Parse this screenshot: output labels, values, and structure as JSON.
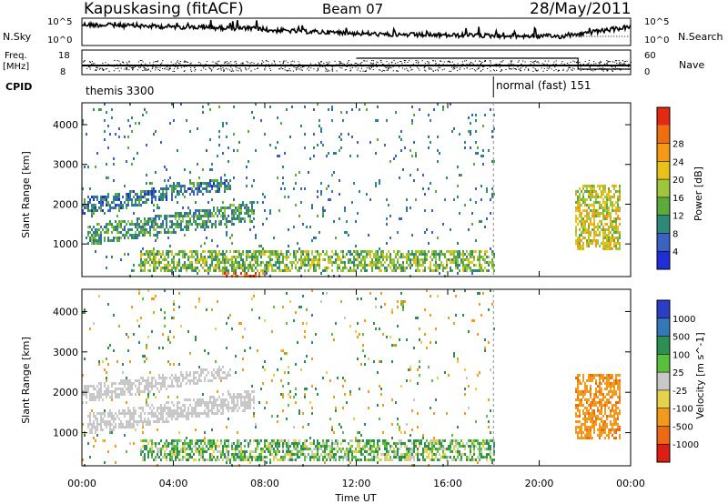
{
  "header": {
    "station": "Kapuskasing (fitACF)",
    "beam": "Beam 07",
    "date": "28/May/2011"
  },
  "sky_panel": {
    "left_label": "N.Sky",
    "right_label": "N.Search",
    "left_ticks": [
      "10^5",
      "10^0"
    ],
    "right_ticks": [
      "10^5",
      "10^0"
    ]
  },
  "freq_panel": {
    "left_label_1": "Freq.",
    "left_label_2": "[MHz]",
    "right_label": "Nave",
    "left_ticks": [
      "18",
      "8"
    ],
    "right_ticks": [
      "60",
      "0"
    ]
  },
  "cpid_panel": {
    "label": "CPID",
    "segments": [
      {
        "name": "themis 3300",
        "start_hour": 0
      },
      {
        "name": "normal (fast) 151",
        "start_hour": 18
      }
    ]
  },
  "time_axis": {
    "label": "Time UT",
    "ticks": [
      "00:00",
      "04:00",
      "08:00",
      "12:00",
      "16:00",
      "20:00",
      "00:00"
    ],
    "range_hours": [
      0,
      24
    ]
  },
  "range_axis": {
    "label": "Slant Range [km]",
    "ticks": [
      "1000",
      "2000",
      "3000",
      "4000"
    ],
    "range_km": [
      180,
      4550
    ]
  },
  "power_scale": {
    "label": "Power [dB]",
    "ticks": [
      "4",
      "8",
      "12",
      "16",
      "20",
      "24",
      "28"
    ],
    "range": [
      0,
      32
    ],
    "colors": [
      "#1f2fd8",
      "#3a62c0",
      "#2e8a78",
      "#5caa3c",
      "#9fc63a",
      "#e6c21a",
      "#f49a16",
      "#ef6e0e",
      "#e02a12"
    ]
  },
  "velocity_scale": {
    "label": "Velocity [m s^-1]",
    "ticks": [
      "1000",
      "500",
      "100",
      "25",
      "-25",
      "-100",
      "-500",
      "-1000"
    ],
    "colors": [
      "#2a3fc6",
      "#3578b8",
      "#2e8f52",
      "#56c03c",
      "#c8c8c8",
      "#e6d24a",
      "#f29a1c",
      "#ec6a14",
      "#dd1e14"
    ]
  },
  "chart_data": [
    {
      "type": "heatmap",
      "name": "",
      "x_units": "hours UT",
      "y_units": "km",
      "xlim": [
        0,
        24
      ],
      "ylim": [
        180,
        4550
      ],
      "regions": [
        {
          "x": [
            0.0,
            6.5
          ],
          "y_start": [
            1750,
            2400
          ],
          "y_end": [
            2200,
            2700
          ],
          "power_db": 8
        },
        {
          "x": [
            0.2,
            7.5
          ],
          "y_start": [
            1000,
            1600
          ],
          "y_end": [
            1500,
            2100
          ],
          "power_db": 10
        },
        {
          "x": [
            2.5,
            18.0
          ],
          "y": [
            300,
            900
          ],
          "power_db": 14
        },
        {
          "x": [
            6.0,
            8.0
          ],
          "y": [
            180,
            450
          ],
          "power_db": 26
        },
        {
          "x": [
            21.5,
            23.5
          ],
          "y": [
            900,
            2500
          ],
          "power_db": 18
        }
      ]
    },
    {
      "type": "heatmap",
      "name": "",
      "x_units": "hours UT",
      "y_units": "km",
      "xlim": [
        0,
        24
      ],
      "ylim": [
        180,
        4550
      ],
      "regions": [
        {
          "x": [
            0.0,
            6.5
          ],
          "y_start": [
            1750,
            2400
          ],
          "y_end": [
            2200,
            2700
          ],
          "velocity": 0
        },
        {
          "x": [
            0.2,
            7.5
          ],
          "y_start": [
            1000,
            1600
          ],
          "y_end": [
            1500,
            2100
          ],
          "velocity": 0
        },
        {
          "x": [
            2.5,
            18.0
          ],
          "y": [
            300,
            900
          ],
          "velocity": 60
        },
        {
          "x": [
            21.5,
            23.5
          ],
          "y": [
            900,
            2500
          ],
          "velocity": -400
        }
      ]
    }
  ]
}
